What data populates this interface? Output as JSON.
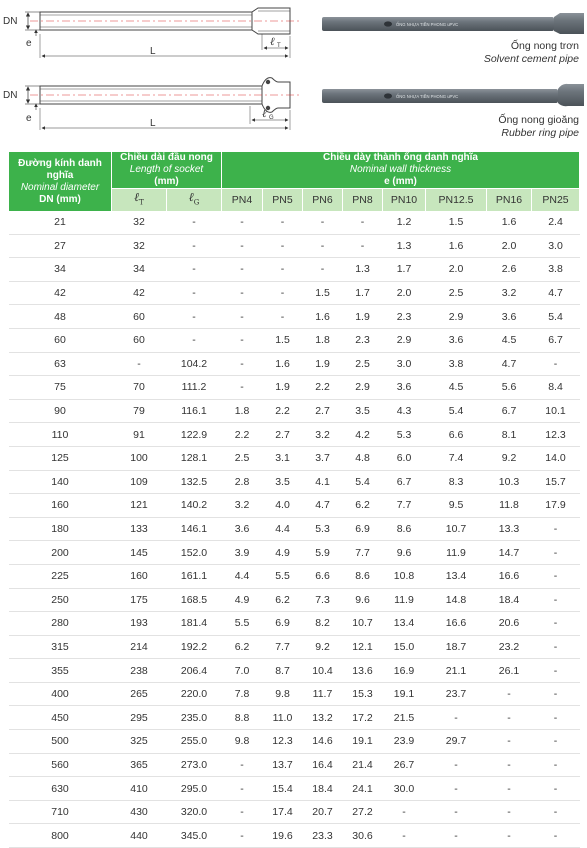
{
  "drawings": {
    "top": {
      "dn_label": "DN",
      "e_label": "e",
      "l_label": "L",
      "lt_symbol": "ℓ",
      "lt_sub": "T"
    },
    "bottom": {
      "dn_label": "DN",
      "e_label": "e",
      "l_label": "L",
      "lg_symbol": "ℓ",
      "lg_sub": "G"
    }
  },
  "photos": [
    {
      "print_text": "ỐNG NHỰA TIỀN PHONG uPVC",
      "caption_vi": "Ống nong trơn",
      "caption_en": "Solvent cement pipe"
    },
    {
      "print_text": "ỐNG NHỰA TIỀN PHONG uPVC",
      "caption_vi": "Ống nong gioăng",
      "caption_en": "Rubber ring pipe"
    }
  ],
  "table": {
    "header": {
      "dn_vi": "Đường kính danh nghĩa",
      "dn_en": "Nominal diameter",
      "dn_unit": "DN (mm)",
      "socket_vi": "Chiều dài đầu nong",
      "socket_en": "Length of socket",
      "socket_unit": "(mm)",
      "wall_vi": "Chiều dày thành ống danh nghĩa",
      "wall_en": "Nominal wall thickness",
      "wall_unit": "e (mm)",
      "lt_symbol": "ℓ",
      "lt_sub": "T",
      "lg_symbol": "ℓ",
      "lg_sub": "G",
      "pn": [
        "PN4",
        "PN5",
        "PN6",
        "PN8",
        "PN10",
        "PN12.5",
        "PN16",
        "PN25"
      ]
    },
    "rows": [
      [
        "21",
        "32",
        "-",
        "-",
        "-",
        "-",
        "-",
        "1.2",
        "1.5",
        "1.6",
        "2.4"
      ],
      [
        "27",
        "32",
        "-",
        "-",
        "-",
        "-",
        "-",
        "1.3",
        "1.6",
        "2.0",
        "3.0"
      ],
      [
        "34",
        "34",
        "-",
        "-",
        "-",
        "-",
        "1.3",
        "1.7",
        "2.0",
        "2.6",
        "3.8"
      ],
      [
        "42",
        "42",
        "-",
        "-",
        "-",
        "1.5",
        "1.7",
        "2.0",
        "2.5",
        "3.2",
        "4.7"
      ],
      [
        "48",
        "60",
        "-",
        "-",
        "-",
        "1.6",
        "1.9",
        "2.3",
        "2.9",
        "3.6",
        "5.4"
      ],
      [
        "60",
        "60",
        "-",
        "-",
        "1.5",
        "1.8",
        "2.3",
        "2.9",
        "3.6",
        "4.5",
        "6.7"
      ],
      [
        "63",
        "-",
        "104.2",
        "-",
        "1.6",
        "1.9",
        "2.5",
        "3.0",
        "3.8",
        "4.7",
        "-"
      ],
      [
        "75",
        "70",
        "111.2",
        "-",
        "1.9",
        "2.2",
        "2.9",
        "3.6",
        "4.5",
        "5.6",
        "8.4"
      ],
      [
        "90",
        "79",
        "116.1",
        "1.8",
        "2.2",
        "2.7",
        "3.5",
        "4.3",
        "5.4",
        "6.7",
        "10.1"
      ],
      [
        "110",
        "91",
        "122.9",
        "2.2",
        "2.7",
        "3.2",
        "4.2",
        "5.3",
        "6.6",
        "8.1",
        "12.3"
      ],
      [
        "125",
        "100",
        "128.1",
        "2.5",
        "3.1",
        "3.7",
        "4.8",
        "6.0",
        "7.4",
        "9.2",
        "14.0"
      ],
      [
        "140",
        "109",
        "132.5",
        "2.8",
        "3.5",
        "4.1",
        "5.4",
        "6.7",
        "8.3",
        "10.3",
        "15.7"
      ],
      [
        "160",
        "121",
        "140.2",
        "3.2",
        "4.0",
        "4.7",
        "6.2",
        "7.7",
        "9.5",
        "11.8",
        "17.9"
      ],
      [
        "180",
        "133",
        "146.1",
        "3.6",
        "4.4",
        "5.3",
        "6.9",
        "8.6",
        "10.7",
        "13.3",
        "-"
      ],
      [
        "200",
        "145",
        "152.0",
        "3.9",
        "4.9",
        "5.9",
        "7.7",
        "9.6",
        "11.9",
        "14.7",
        "-"
      ],
      [
        "225",
        "160",
        "161.1",
        "4.4",
        "5.5",
        "6.6",
        "8.6",
        "10.8",
        "13.4",
        "16.6",
        "-"
      ],
      [
        "250",
        "175",
        "168.5",
        "4.9",
        "6.2",
        "7.3",
        "9.6",
        "11.9",
        "14.8",
        "18.4",
        "-"
      ],
      [
        "280",
        "193",
        "181.4",
        "5.5",
        "6.9",
        "8.2",
        "10.7",
        "13.4",
        "16.6",
        "20.6",
        "-"
      ],
      [
        "315",
        "214",
        "192.2",
        "6.2",
        "7.7",
        "9.2",
        "12.1",
        "15.0",
        "18.7",
        "23.2",
        "-"
      ],
      [
        "355",
        "238",
        "206.4",
        "7.0",
        "8.7",
        "10.4",
        "13.6",
        "16.9",
        "21.1",
        "26.1",
        "-"
      ],
      [
        "400",
        "265",
        "220.0",
        "7.8",
        "9.8",
        "11.7",
        "15.3",
        "19.1",
        "23.7",
        "-",
        "-"
      ],
      [
        "450",
        "295",
        "235.0",
        "8.8",
        "11.0",
        "13.2",
        "17.2",
        "21.5",
        "-",
        "-",
        "-"
      ],
      [
        "500",
        "325",
        "255.0",
        "9.8",
        "12.3",
        "14.6",
        "19.1",
        "23.9",
        "29.7",
        "-",
        "-"
      ],
      [
        "560",
        "365",
        "273.0",
        "-",
        "13.7",
        "16.4",
        "21.4",
        "26.7",
        "-",
        "-",
        "-"
      ],
      [
        "630",
        "410",
        "295.0",
        "-",
        "15.4",
        "18.4",
        "24.1",
        "30.0",
        "-",
        "-",
        "-"
      ],
      [
        "710",
        "430",
        "320.0",
        "-",
        "17.4",
        "20.7",
        "27.2",
        "-",
        "-",
        "-",
        "-"
      ],
      [
        "800",
        "440",
        "345.0",
        "-",
        "19.6",
        "23.3",
        "30.6",
        "-",
        "-",
        "-",
        "-"
      ]
    ]
  }
}
